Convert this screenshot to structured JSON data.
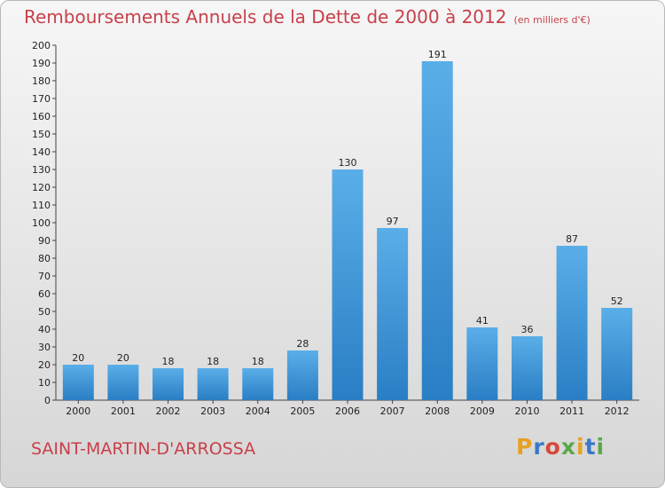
{
  "header": {
    "title": "Remboursements Annuels de la Dette de 2000 à 2012",
    "subtitle": "(en milliers d'€)"
  },
  "footer": {
    "city": "SAINT-MARTIN-D'ARROSSA",
    "logo": "Proxiti"
  },
  "colors": {
    "bar_top": "#5aaee8",
    "bar_bottom": "#2a7ec4",
    "title": "#c8404a"
  },
  "chart_data": {
    "type": "bar",
    "title": "Remboursements Annuels de la Dette de 2000 à 2012",
    "subtitle": "(en milliers d'€)",
    "categories": [
      "2000",
      "2001",
      "2002",
      "2003",
      "2004",
      "2005",
      "2006",
      "2007",
      "2008",
      "2009",
      "2010",
      "2011",
      "2012"
    ],
    "values": [
      20,
      20,
      18,
      18,
      18,
      28,
      130,
      97,
      191,
      41,
      36,
      87,
      52
    ],
    "ylim": [
      0,
      200
    ],
    "yticks": [
      0,
      10,
      20,
      30,
      40,
      50,
      60,
      70,
      80,
      90,
      100,
      110,
      120,
      130,
      140,
      150,
      160,
      170,
      180,
      190,
      200
    ],
    "xlabel": "",
    "ylabel": "",
    "grid": false,
    "legend": "none"
  }
}
